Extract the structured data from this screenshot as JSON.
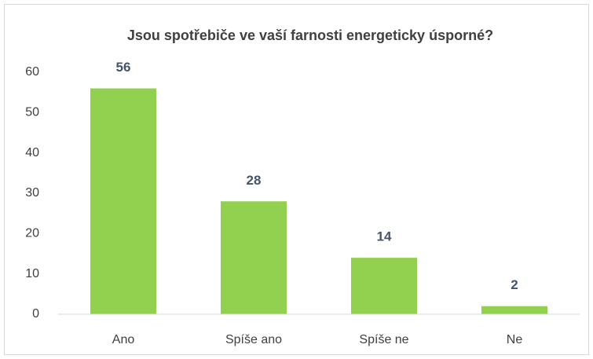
{
  "chart_data": {
    "type": "bar",
    "title": "Jsou spotřebiče ve vaší farnosti energeticky úsporné?",
    "categories": [
      "Ano",
      "Spíše ano",
      "Spíše ne",
      "Ne"
    ],
    "values": [
      56,
      28,
      14,
      2
    ],
    "color": "#92d050",
    "ylim": [
      0,
      60
    ],
    "yticks": [
      0,
      10,
      20,
      30,
      40,
      50,
      60
    ],
    "grid": false
  }
}
